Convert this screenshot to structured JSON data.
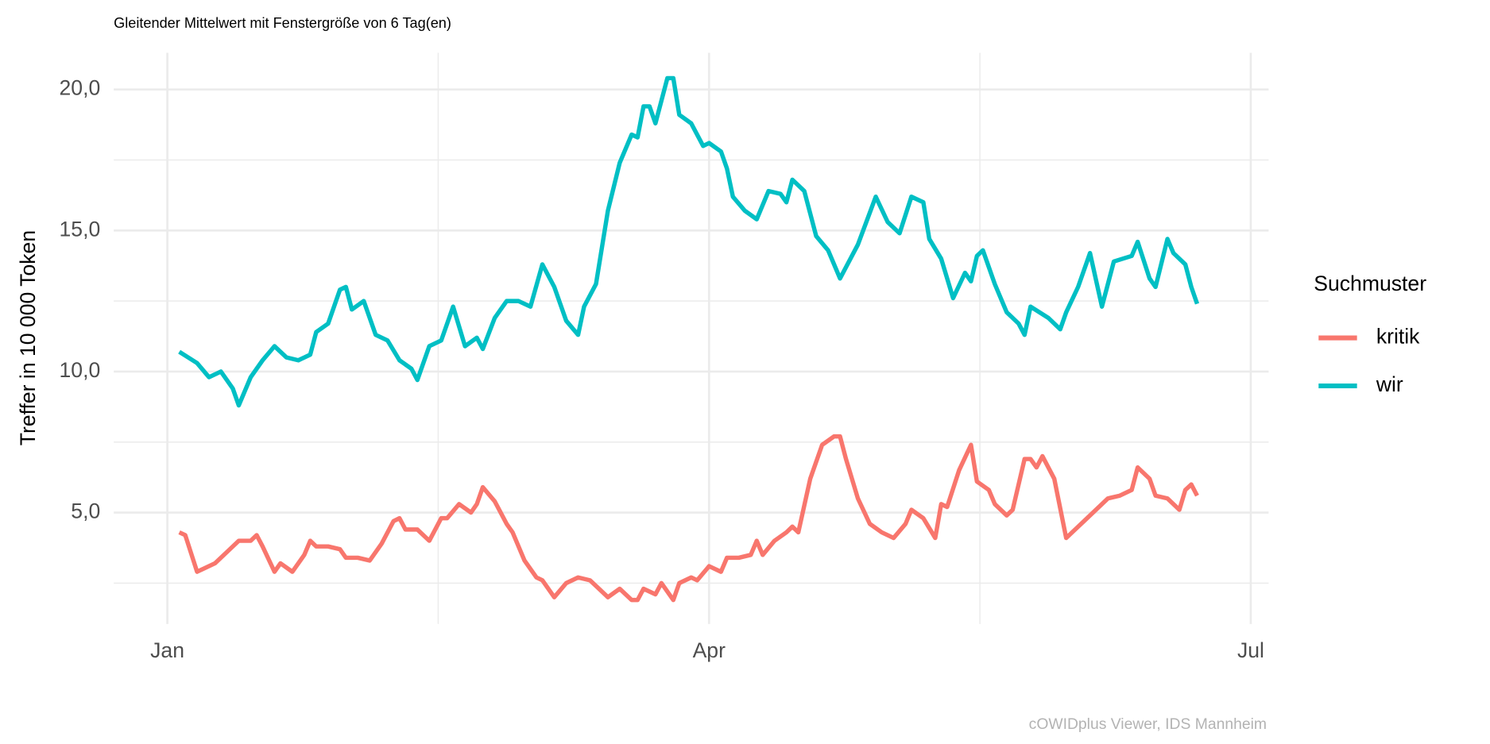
{
  "chart_data": {
    "type": "line",
    "title": "Gleitender Mittelwert mit Fenstergröße von 6 Tag(en)",
    "y_label": "Treffer in 10 000 Token",
    "legend_title": "Suchmuster",
    "caption": "cOWIDplus Viewer, IDS Mannheim",
    "legend": "right",
    "grid": true,
    "xlim": [
      -9,
      185
    ],
    "xticks": [
      {
        "value": 0,
        "label": "Jan"
      },
      {
        "value": 91,
        "label": "Apr"
      },
      {
        "value": 182,
        "label": "Jul"
      }
    ],
    "ylim": [
      1.05,
      21.3
    ],
    "yticks": [
      {
        "value": 5,
        "label": "5,0"
      },
      {
        "value": 10,
        "label": "10,0"
      },
      {
        "value": 15,
        "label": "15,0"
      },
      {
        "value": 20,
        "label": "20,0"
      }
    ],
    "series": [
      {
        "name": "kritik",
        "color": "#F8766D",
        "x": [
          2,
          3,
          5,
          8,
          10,
          12,
          14,
          15,
          16,
          18,
          19,
          21,
          23,
          24,
          25,
          27,
          29,
          30,
          32,
          34,
          36,
          38,
          39,
          40,
          42,
          44,
          46,
          47,
          49,
          51,
          52,
          53,
          55,
          57,
          58,
          60,
          62,
          63,
          65,
          67,
          69,
          71,
          73,
          74,
          76,
          78,
          79,
          80,
          82,
          83,
          85,
          86,
          88,
          89,
          91,
          93,
          94,
          96,
          98,
          99,
          100,
          102,
          104,
          105,
          106,
          108,
          110,
          112,
          113,
          114,
          116,
          118,
          120,
          122,
          124,
          125,
          127,
          129,
          130,
          131,
          133,
          135,
          136,
          138,
          139,
          141,
          142,
          144,
          145,
          146,
          147,
          149,
          151,
          152,
          154,
          156,
          158,
          160,
          162,
          163,
          165,
          166,
          168,
          170,
          171,
          172,
          173
        ],
        "values": [
          4.3,
          4.2,
          2.9,
          3.2,
          3.6,
          4.0,
          4.0,
          4.2,
          3.8,
          2.9,
          3.2,
          2.9,
          3.5,
          4.0,
          3.8,
          3.8,
          3.7,
          3.4,
          3.4,
          3.3,
          3.9,
          4.7,
          4.8,
          4.4,
          4.4,
          4.0,
          4.8,
          4.8,
          5.3,
          5.0,
          5.3,
          5.9,
          5.4,
          4.6,
          4.3,
          3.3,
          2.7,
          2.6,
          2.0,
          2.5,
          2.7,
          2.6,
          2.2,
          2.0,
          2.3,
          1.9,
          1.9,
          2.3,
          2.1,
          2.5,
          1.9,
          2.5,
          2.7,
          2.6,
          3.1,
          2.9,
          3.4,
          3.4,
          3.5,
          4.0,
          3.5,
          4.0,
          4.3,
          4.5,
          4.3,
          6.2,
          7.4,
          7.7,
          7.7,
          6.9,
          5.5,
          4.6,
          4.3,
          4.1,
          4.6,
          5.1,
          4.8,
          4.1,
          5.3,
          5.2,
          6.5,
          7.4,
          6.1,
          5.8,
          5.3,
          4.9,
          5.1,
          6.9,
          6.9,
          6.6,
          7.0,
          6.2,
          4.1,
          4.3,
          4.7,
          5.1,
          5.5,
          5.6,
          5.8,
          6.6,
          6.2,
          5.6,
          5.5,
          5.1,
          5.8,
          6.0,
          5.6
        ]
      },
      {
        "name": "wir",
        "color": "#00BFC4",
        "x": [
          2,
          5,
          7,
          9,
          11,
          12,
          14,
          16,
          18,
          20,
          22,
          24,
          25,
          27,
          29,
          30,
          31,
          33,
          35,
          37,
          39,
          41,
          42,
          44,
          46,
          48,
          50,
          52,
          53,
          55,
          57,
          59,
          61,
          63,
          65,
          67,
          69,
          70,
          72,
          74,
          76,
          78,
          79,
          80,
          81,
          82,
          84,
          85,
          86,
          88,
          90,
          91,
          93,
          94,
          95,
          97,
          99,
          101,
          103,
          104,
          105,
          107,
          109,
          111,
          113,
          116,
          119,
          121,
          123,
          125,
          127,
          128,
          130,
          132,
          134,
          135,
          136,
          137,
          139,
          141,
          143,
          144,
          145,
          148,
          150,
          151,
          153,
          155,
          157,
          159,
          162,
          163,
          165,
          166,
          168,
          169,
          171,
          172,
          173
        ],
        "values": [
          10.7,
          10.3,
          9.8,
          10.0,
          9.4,
          8.8,
          9.8,
          10.4,
          10.9,
          10.5,
          10.4,
          10.6,
          11.4,
          11.7,
          12.9,
          13.0,
          12.2,
          12.5,
          11.3,
          11.1,
          10.4,
          10.1,
          9.7,
          10.9,
          11.1,
          12.3,
          10.9,
          11.2,
          10.8,
          11.9,
          12.5,
          12.5,
          12.3,
          13.8,
          13.0,
          11.8,
          11.3,
          12.3,
          13.1,
          15.7,
          17.4,
          18.4,
          18.3,
          19.4,
          19.4,
          18.8,
          20.4,
          20.4,
          19.1,
          18.8,
          18.0,
          18.1,
          17.8,
          17.2,
          16.2,
          15.7,
          15.4,
          16.4,
          16.3,
          16.0,
          16.8,
          16.4,
          14.8,
          14.3,
          13.3,
          14.5,
          16.2,
          15.3,
          14.9,
          16.2,
          16.0,
          14.7,
          14.0,
          12.6,
          13.5,
          13.2,
          14.1,
          14.3,
          13.1,
          12.1,
          11.7,
          11.3,
          12.3,
          11.9,
          11.5,
          12.1,
          13.0,
          14.2,
          12.3,
          13.9,
          14.1,
          14.6,
          13.3,
          13.0,
          14.7,
          14.2,
          13.8,
          13.0,
          12.4
        ]
      }
    ]
  }
}
